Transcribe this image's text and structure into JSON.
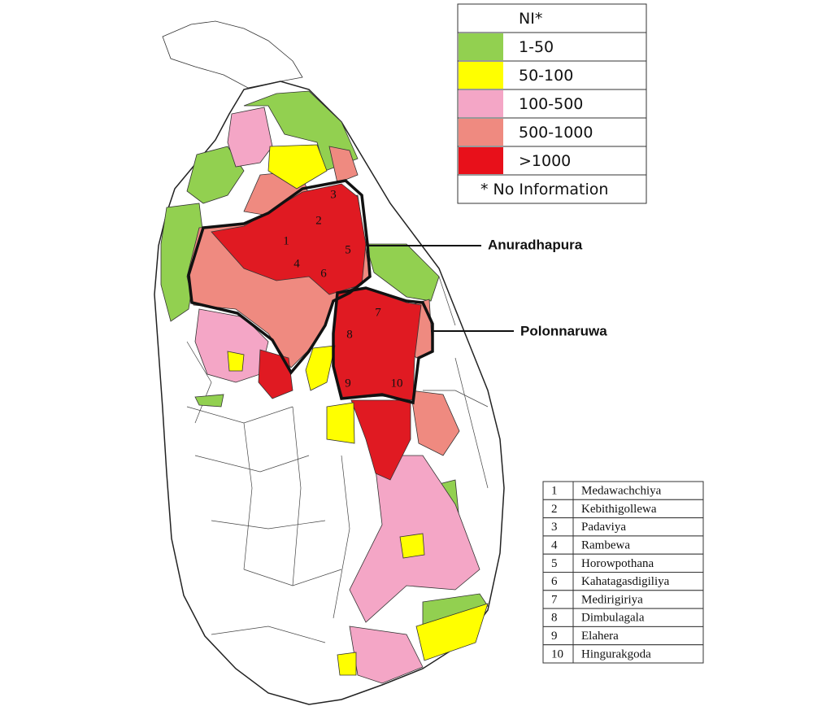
{
  "legend": {
    "rows": [
      {
        "label": "NI*",
        "color": "#ffffff"
      },
      {
        "label": "1-50",
        "color": "#92d050"
      },
      {
        "label": "50-100",
        "color": "#ffff00"
      },
      {
        "label": "100-500",
        "color": "#f4a6c6"
      },
      {
        "label": "500-1000",
        "color": "#ef8a80"
      },
      {
        "label": ">1000",
        "color": "#e8101a"
      }
    ],
    "note": "* No Information"
  },
  "districts": [
    {
      "name": "Anuradhapura"
    },
    {
      "name": "Polonnaruwa"
    }
  ],
  "key": {
    "rows": [
      {
        "no": "1",
        "name": "Medawachchiya"
      },
      {
        "no": "2",
        "name": "Kebithigollewa"
      },
      {
        "no": "3",
        "name": "Padaviya"
      },
      {
        "no": "4",
        "name": "Rambewa"
      },
      {
        "no": "5",
        "name": "Horowpothana"
      },
      {
        "no": "6",
        "name": "Kahatagasdigiliya"
      },
      {
        "no": "7",
        "name": "Medirigiriya"
      },
      {
        "no": "8",
        "name": "Dimbulagala"
      },
      {
        "no": "9",
        "name": "Elahera"
      },
      {
        "no": "10",
        "name": "Hingurakgoda"
      }
    ]
  }
}
